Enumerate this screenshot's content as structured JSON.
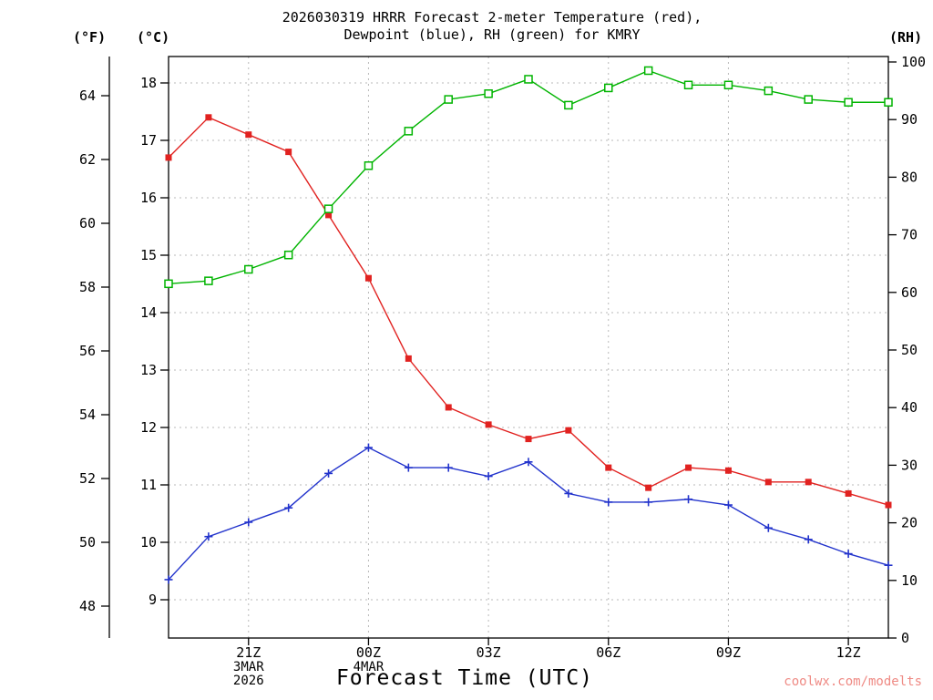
{
  "page": {
    "title_line1": "2026030319 HRRR Forecast 2-meter Temperature (red),",
    "title_line2": "Dewpoint (blue), RH (green) for KMRY"
  },
  "chart_data": {
    "type": "line",
    "title": "2026030319 HRRR Forecast 2-meter Temperature (red), Dewpoint (blue), RH (green) for KMRY",
    "title_line1": "2026030319 HRRR Forecast 2-meter Temperature (red),",
    "title_line2": "Dewpoint (blue), RH (green) for KMRY",
    "xlabel": "Forecast Time (UTC)",
    "watermark": "coolwx.com/modelts",
    "station": "KMRY",
    "model_run": "2026030319",
    "legend_position": "in-title",
    "grid": true,
    "axes": {
      "f_label": "(°F)",
      "c_label": "(°C)",
      "rh_label": "(RH)",
      "f_ticks": [
        48,
        50,
        52,
        54,
        56,
        58,
        60,
        62,
        64
      ],
      "c_ticks": [
        9,
        10,
        11,
        12,
        13,
        14,
        15,
        16,
        17,
        18
      ],
      "rh_ticks": [
        0,
        10,
        20,
        30,
        40,
        50,
        60,
        70,
        80,
        90,
        100
      ],
      "c_axis_range": [
        8.3,
        18.5
      ],
      "rh_axis_range": [
        0,
        101
      ],
      "x_ticks": [
        {
          "hour": 21,
          "label": "21Z",
          "sub": [
            "3MAR",
            "2026"
          ]
        },
        {
          "hour": 24,
          "label": "00Z",
          "sub": [
            "4MAR"
          ]
        },
        {
          "hour": 27,
          "label": "03Z",
          "sub": []
        },
        {
          "hour": 30,
          "label": "06Z",
          "sub": []
        },
        {
          "hour": 33,
          "label": "09Z",
          "sub": []
        },
        {
          "hour": 36,
          "label": "12Z",
          "sub": []
        }
      ]
    },
    "x_hours": [
      19,
      20,
      21,
      22,
      23,
      24,
      25,
      26,
      27,
      28,
      29,
      30,
      31,
      32,
      33,
      34,
      35,
      36,
      37
    ],
    "categories": [
      "19Z",
      "20Z",
      "21Z",
      "22Z",
      "23Z",
      "00Z",
      "01Z",
      "02Z",
      "03Z",
      "04Z",
      "05Z",
      "06Z",
      "07Z",
      "08Z",
      "09Z",
      "10Z",
      "11Z",
      "12Z",
      "13Z"
    ],
    "series": [
      {
        "name": "2m Temperature (°C)",
        "key": "temperature",
        "color": "#e12220",
        "marker": "filled-square",
        "axis": "c",
        "values": [
          16.7,
          17.4,
          17.1,
          16.8,
          15.7,
          14.6,
          13.2,
          12.35,
          12.05,
          11.8,
          11.95,
          11.3,
          10.95,
          11.3,
          11.25,
          11.05,
          11.05,
          10.85,
          10.65
        ]
      },
      {
        "name": "2m Dewpoint (°C)",
        "key": "dewpoint",
        "color": "#2233cc",
        "marker": "plus",
        "axis": "c",
        "values": [
          9.35,
          10.1,
          10.35,
          10.6,
          11.2,
          11.65,
          11.3,
          11.3,
          11.15,
          11.4,
          10.85,
          10.7,
          10.7,
          10.75,
          10.65,
          10.25,
          10.05,
          9.8,
          9.6
        ]
      },
      {
        "name": "Relative Humidity (%)",
        "key": "rh",
        "color": "#00b400",
        "marker": "open-square",
        "axis": "rh",
        "values": [
          61.5,
          62,
          64,
          66.5,
          74.5,
          82,
          88,
          93.5,
          94.5,
          97,
          92.5,
          95.5,
          98.5,
          96,
          96,
          95,
          93.5,
          93,
          93
        ]
      }
    ],
    "colors": {
      "axis": "#000000",
      "grid": "#b9b9b9",
      "watermark_text": "#ef8a84"
    }
  }
}
